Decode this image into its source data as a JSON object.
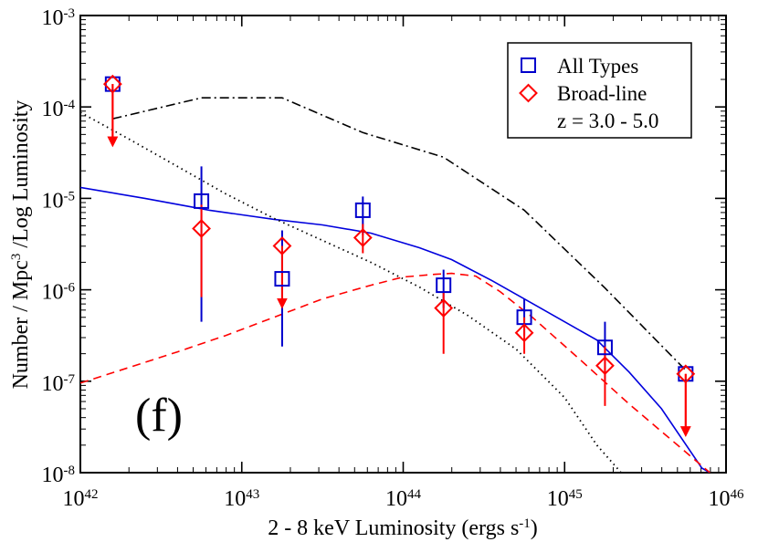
{
  "chart_data": {
    "type": "scatter",
    "panel_label": "(f)",
    "xlabel": "2 - 8 keV Luminosity  (ergs s",
    "xlabel_sup": "-1",
    "xlabel_close": ")",
    "ylabel": "Number / Mpc",
    "ylabel_sup": "3",
    "ylabel_tail": " /Log Luminosity",
    "xscale": "log",
    "yscale": "log",
    "xlim_exp": [
      42,
      46
    ],
    "ylim_exp": [
      -8,
      -3
    ],
    "x_ticks": [
      {
        "exp": 42,
        "base": "10",
        "sup": "42"
      },
      {
        "exp": 43,
        "base": "10",
        "sup": "43"
      },
      {
        "exp": 44,
        "base": "10",
        "sup": "44"
      },
      {
        "exp": 45,
        "base": "10",
        "sup": "45"
      },
      {
        "exp": 46,
        "base": "10",
        "sup": "46"
      }
    ],
    "y_ticks": [
      {
        "exp": -8,
        "base": "10",
        "sup": "-8"
      },
      {
        "exp": -7,
        "base": "10",
        "sup": "-7"
      },
      {
        "exp": -6,
        "base": "10",
        "sup": "-6"
      },
      {
        "exp": -5,
        "base": "10",
        "sup": "-5"
      },
      {
        "exp": -4,
        "base": "10",
        "sup": "-4"
      },
      {
        "exp": -3,
        "base": "10",
        "sup": "-3"
      }
    ],
    "legend": {
      "position": "top-right",
      "entries": [
        "All Types",
        "Broad-line"
      ],
      "note": "z = 3.0 - 5.0"
    },
    "series": [
      {
        "name": "All Types",
        "marker": "square",
        "color": "#0000cc",
        "points": [
          {
            "logx": 42.2,
            "logy": -3.75,
            "upper_limit": true
          },
          {
            "logx": 42.75,
            "logy": -5.03,
            "err_lo": -6.35,
            "err_hi": -4.65
          },
          {
            "logx": 43.25,
            "logy": -5.88,
            "err_lo": -6.62,
            "err_hi": -5.35
          },
          {
            "logx": 43.75,
            "logy": -5.13,
            "err_lo": -5.4,
            "err_hi": -4.98
          },
          {
            "logx": 44.25,
            "logy": -5.95,
            "err_lo": -6.2,
            "err_hi": -5.78
          },
          {
            "logx": 44.75,
            "logy": -6.3,
            "err_lo": -6.5,
            "err_hi": -6.1
          },
          {
            "logx": 45.25,
            "logy": -6.63,
            "err_lo": -7.0,
            "err_hi": -6.35
          },
          {
            "logx": 45.75,
            "logy": -6.92,
            "upper_limit": true
          }
        ]
      },
      {
        "name": "Broad-line",
        "marker": "diamond",
        "color": "#ff0000",
        "points": [
          {
            "logx": 42.2,
            "logy": -3.75,
            "upper_limit": true
          },
          {
            "logx": 42.75,
            "logy": -5.33,
            "err_lo": -6.08,
            "err_hi": -5.07
          },
          {
            "logx": 43.25,
            "logy": -5.52,
            "upper_limit": true
          },
          {
            "logx": 43.75,
            "logy": -5.43,
            "err_lo": -5.6,
            "err_hi": -5.28
          },
          {
            "logx": 44.25,
            "logy": -6.2,
            "err_lo": -6.7,
            "err_hi": -6.03
          },
          {
            "logx": 44.75,
            "logy": -6.47,
            "err_lo": -6.7,
            "err_hi": -6.3
          },
          {
            "logx": 45.25,
            "logy": -6.83,
            "err_lo": -7.27,
            "err_hi": -6.62
          },
          {
            "logx": 45.75,
            "logy": -6.92,
            "upper_limit": true
          }
        ]
      }
    ],
    "model_curves": [
      {
        "name": "all-types-model",
        "color": "#0000dd",
        "style": "solid",
        "points": [
          [
            42.0,
            -4.88
          ],
          [
            42.4,
            -5.0
          ],
          [
            42.8,
            -5.13
          ],
          [
            43.2,
            -5.23
          ],
          [
            43.5,
            -5.29
          ],
          [
            43.8,
            -5.38
          ],
          [
            44.1,
            -5.54
          ],
          [
            44.3,
            -5.67
          ],
          [
            44.55,
            -5.9
          ],
          [
            44.8,
            -6.15
          ],
          [
            45.05,
            -6.4
          ],
          [
            45.2,
            -6.55
          ],
          [
            45.4,
            -6.9
          ],
          [
            45.6,
            -7.3
          ],
          [
            45.85,
            -7.95
          ],
          [
            45.9,
            -8.0
          ]
        ]
      },
      {
        "name": "broad-line-model",
        "color": "#ff0000",
        "style": "dashed",
        "points": [
          [
            42.0,
            -7.02
          ],
          [
            42.3,
            -6.85
          ],
          [
            42.6,
            -6.68
          ],
          [
            42.9,
            -6.5
          ],
          [
            43.2,
            -6.3
          ],
          [
            43.5,
            -6.1
          ],
          [
            43.8,
            -5.95
          ],
          [
            44.0,
            -5.86
          ],
          [
            44.2,
            -5.83
          ],
          [
            44.3,
            -5.82
          ],
          [
            44.45,
            -5.85
          ],
          [
            44.6,
            -6.02
          ],
          [
            44.8,
            -6.3
          ],
          [
            45.1,
            -6.77
          ],
          [
            45.4,
            -7.25
          ],
          [
            45.7,
            -7.7
          ],
          [
            45.9,
            -8.0
          ]
        ]
      },
      {
        "name": "dotted-model",
        "color": "#000000",
        "style": "dotted",
        "points": [
          [
            42.0,
            -4.06
          ],
          [
            42.3,
            -4.35
          ],
          [
            42.6,
            -4.65
          ],
          [
            42.9,
            -4.95
          ],
          [
            43.2,
            -5.22
          ],
          [
            43.5,
            -5.46
          ],
          [
            43.8,
            -5.7
          ],
          [
            44.1,
            -5.97
          ],
          [
            44.4,
            -6.28
          ],
          [
            44.7,
            -6.65
          ],
          [
            45.0,
            -7.18
          ],
          [
            45.2,
            -7.7
          ],
          [
            45.35,
            -8.0
          ]
        ]
      },
      {
        "name": "dash-dot-model",
        "color": "#000000",
        "style": "dashdot",
        "points": [
          [
            42.2,
            -4.13
          ],
          [
            42.75,
            -3.9
          ],
          [
            43.25,
            -3.9
          ],
          [
            43.75,
            -4.28
          ],
          [
            44.25,
            -4.55
          ],
          [
            44.75,
            -5.13
          ],
          [
            45.25,
            -5.98
          ],
          [
            45.75,
            -6.88
          ]
        ]
      }
    ]
  }
}
